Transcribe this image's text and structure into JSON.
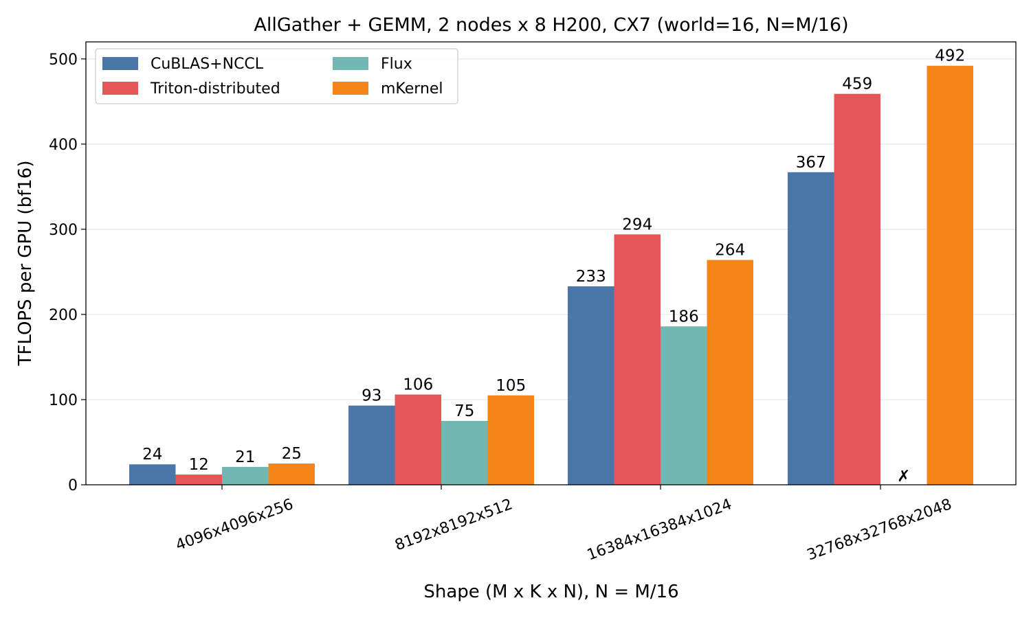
{
  "chart_data": {
    "type": "bar",
    "title": "AllGather + GEMM, 2 nodes x 8 H200, CX7 (world=16, N=M/16)",
    "xlabel": "Shape (M x K x N), N = M/16",
    "ylabel": "TFLOPS per GPU (bf16)",
    "ylim": [
      0,
      520
    ],
    "yticks": [
      0,
      100,
      200,
      300,
      400,
      500
    ],
    "grid": "horizontal",
    "legend_position": "top-left",
    "categories": [
      "4096x4096x256",
      "8192x8192x512",
      "16384x16384x1024",
      "32768x32768x2048"
    ],
    "series": [
      {
        "name": "CuBLAS+NCCL",
        "color": "#4a77a8",
        "values": [
          24,
          93,
          233,
          367
        ]
      },
      {
        "name": "Triton-distributed",
        "color": "#e45756",
        "values": [
          12,
          106,
          294,
          459
        ]
      },
      {
        "name": "Flux",
        "color": "#72b7b2",
        "values": [
          21,
          75,
          186,
          null
        ]
      },
      {
        "name": "mKernel",
        "color": "#f58518",
        "values": [
          25,
          105,
          264,
          492
        ]
      }
    ],
    "failed_marker": "✗",
    "failed_marker_color": "#d62728"
  }
}
